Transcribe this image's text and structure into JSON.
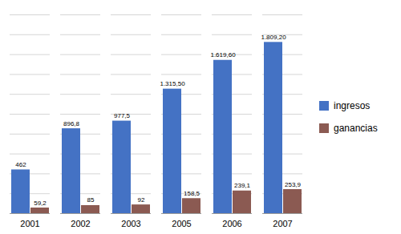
{
  "chart_data": {
    "type": "bar",
    "categories": [
      "2001",
      "2002",
      "2003",
      "2005",
      "2006",
      "2007"
    ],
    "series": [
      {
        "name": "ingresos",
        "color": "#4472C4",
        "values": [
          462,
          896.8,
          977.5,
          1315.5,
          1619.6,
          1809.2
        ],
        "value_labels": [
          "462",
          "896,8",
          "977,5",
          "1.315,50",
          "1.619,60",
          "1.809,20"
        ]
      },
      {
        "name": "ganancias",
        "color": "#8B5A52",
        "values": [
          59.2,
          85,
          92,
          158.5,
          239.1,
          253.9
        ],
        "value_labels": [
          "59,2",
          "85",
          "92",
          "158,5",
          "239,1",
          "253,9"
        ]
      }
    ],
    "ylim": [
      0,
      2100
    ],
    "yticks": [
      0,
      210,
      420,
      630,
      840,
      1050,
      1260,
      1470,
      1680,
      1890,
      2100
    ],
    "grid": true,
    "tick_labels": "x",
    "data_labels": true,
    "legend": "right"
  }
}
